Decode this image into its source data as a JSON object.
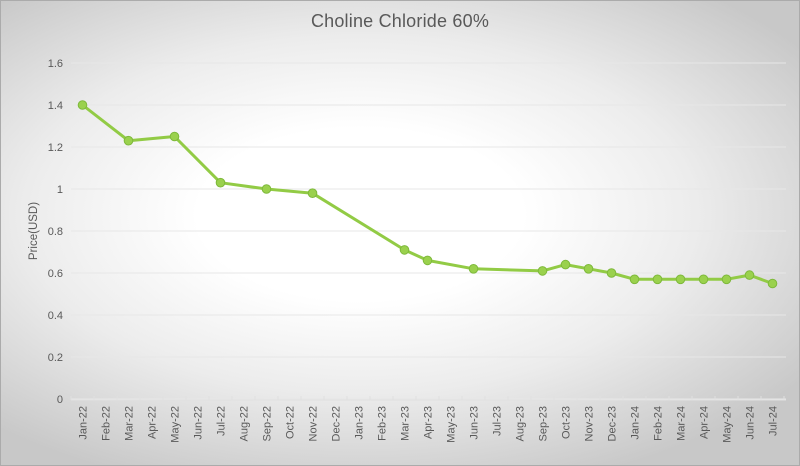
{
  "chart": {
    "title": "Choline Chloride 60%",
    "y_axis_title": "Price(USD)"
  },
  "chart_data": {
    "type": "line",
    "title": "Choline Chloride 60%",
    "xlabel": "",
    "ylabel": "Price(USD)",
    "ylim": [
      0,
      1.6
    ],
    "ytick_interval": 0.2,
    "grid": true,
    "legend_position": "none",
    "marker": "circle",
    "line_color": "#92CB45",
    "marker_fill": "#9AD14D",
    "marker_stroke": "#7EB93B",
    "text_color": "#595959",
    "gridline_color": "#e7e7e7",
    "categories": [
      "Jan-22",
      "Feb-22",
      "Mar-22",
      "Apr-22",
      "May-22",
      "Jun-22",
      "Jul-22",
      "Aug-22",
      "Sep-22",
      "Oct-22",
      "Nov-22",
      "Dec-22",
      "Jan-23",
      "Feb-23",
      "Mar-23",
      "Apr-23",
      "May-23",
      "Jun-23",
      "Jul-23",
      "Aug-23",
      "Sep-23",
      "Oct-23",
      "Nov-23",
      "Dec-23",
      "Jan-24",
      "Feb-24",
      "Mar-24",
      "Apr-24",
      "May-24",
      "Jun-24",
      "Jul-24"
    ],
    "series": [
      {
        "name": "Choline Chloride 60%",
        "values": [
          1.4,
          null,
          1.23,
          null,
          1.25,
          null,
          1.03,
          null,
          1.0,
          null,
          0.98,
          null,
          null,
          null,
          0.71,
          0.66,
          null,
          0.62,
          null,
          null,
          0.61,
          0.64,
          0.62,
          0.6,
          0.57,
          0.57,
          0.57,
          0.57,
          0.57,
          0.59,
          0.55
        ]
      }
    ]
  }
}
